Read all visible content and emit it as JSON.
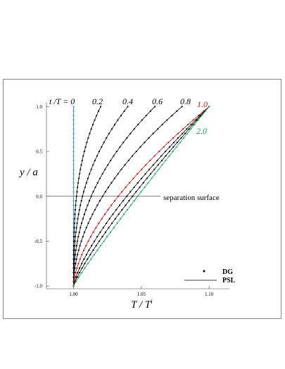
{
  "chart_data": {
    "type": "line",
    "xlabel_main": "T",
    "xlabel_sep": " / ",
    "xlabel_denom": "T",
    "xlabel_sup": "i",
    "ylabel": "y / a",
    "xlim": [
      0.98,
      1.115
    ],
    "ylim": [
      -1.03,
      1.05
    ],
    "x_ticks": [
      "1.00",
      "1.05",
      "1.10"
    ],
    "x_tick_values": [
      1.0,
      1.05,
      1.1
    ],
    "y_ticks": [
      "1.0",
      "0.5",
      "0.0",
      "-0.5",
      "-1.0"
    ],
    "y_tick_values": [
      1.0,
      0.5,
      0.0,
      -0.5,
      -1.0
    ],
    "annotation": "separation surface",
    "legend": {
      "dots": "DG",
      "line": "PSL",
      "position": "bottom-right"
    },
    "time_label_prefix": "t /T = ",
    "series": [
      {
        "name": "0",
        "color": "#2060d0",
        "top_x": 1.0,
        "p": 1.0,
        "dot_color": "#30a0e0"
      },
      {
        "name": "0.2",
        "color": "#000000",
        "top_x": 1.02,
        "p": 3.2,
        "dot_color": "#000000"
      },
      {
        "name": "0.4",
        "color": "#000000",
        "top_x": 1.04,
        "p": 2.6,
        "dot_color": "#000000"
      },
      {
        "name": "0.6",
        "color": "#000000",
        "top_x": 1.06,
        "p": 2.2,
        "dot_color": "#000000"
      },
      {
        "name": "0.8",
        "color": "#000000",
        "top_x": 1.08,
        "p": 1.9,
        "dot_color": "#000000"
      },
      {
        "name": "1.0",
        "color": "#d01010",
        "top_x": 1.1,
        "p": 1.6,
        "dot_color": "#d01010"
      },
      {
        "name": "2.0",
        "color": "#10a060",
        "top_x": 1.1,
        "p": 1.08,
        "dot_color": "#20b050"
      }
    ],
    "extra_curves": [
      {
        "top_x": 1.1,
        "p": 1.35
      },
      {
        "top_x": 1.1,
        "p": 1.2
      }
    ]
  }
}
